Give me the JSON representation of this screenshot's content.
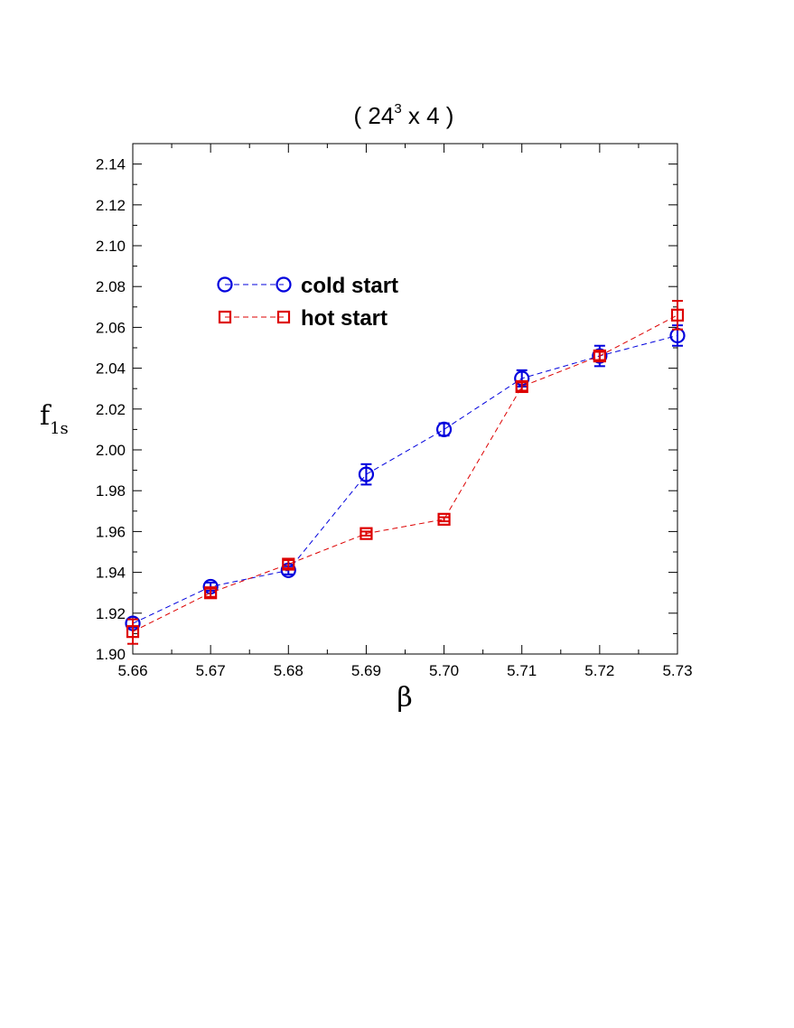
{
  "chart_data": {
    "type": "line",
    "title": "( 24",
    "title_sup": "3",
    "title_tail": " x 4 )",
    "xlabel": "β",
    "ylabel": "f",
    "ylabel_sub": "1s",
    "xlim": [
      5.66,
      5.73
    ],
    "ylim": [
      1.9,
      2.15
    ],
    "x_ticks": [
      "5.66",
      "5.67",
      "5.68",
      "5.69",
      "5.70",
      "5.71",
      "5.72",
      "5.73"
    ],
    "y_ticks": [
      "1.90",
      "1.92",
      "1.94",
      "1.96",
      "1.98",
      "2.00",
      "2.02",
      "2.04",
      "2.06",
      "2.08",
      "2.10",
      "2.12",
      "2.14"
    ],
    "grid": false,
    "legend_position": "upper-left",
    "x": [
      5.66,
      5.67,
      5.68,
      5.69,
      5.7,
      5.71,
      5.72,
      5.73
    ],
    "series": [
      {
        "name": "cold start",
        "marker": "circle",
        "color": "#0000dd",
        "values": [
          1.915,
          1.933,
          1.941,
          1.988,
          2.01,
          2.035,
          2.046,
          2.056
        ],
        "errors": [
          0.002,
          0.002,
          0.002,
          0.005,
          0.003,
          0.004,
          0.005,
          0.005
        ]
      },
      {
        "name": "hot start",
        "marker": "square",
        "color": "#dd0000",
        "values": [
          1.911,
          1.93,
          1.944,
          1.959,
          1.966,
          2.031,
          2.046,
          2.066
        ],
        "errors": [
          0.006,
          0.002,
          0.002,
          0.001,
          0.001,
          0.002,
          0.002,
          0.007
        ]
      }
    ]
  }
}
